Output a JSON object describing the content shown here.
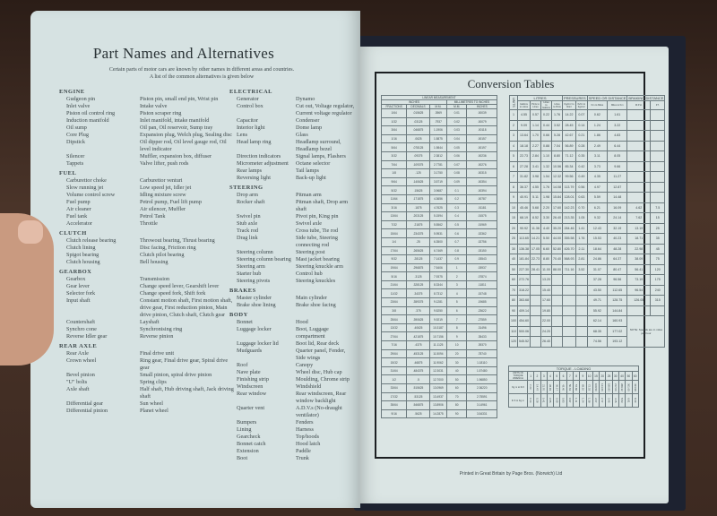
{
  "left_page": {
    "title": "Part Names and Alternatives",
    "intro": "Certain parts of motor cars are known by other names in different areas and countries. A list of the common alternatives is given below",
    "column1": [
      {
        "heading": "ENGINE",
        "items": [
          [
            "Gudgeon pin",
            "Piston pin, small end pin, Wrist pin"
          ],
          [
            "Inlet valve",
            "Intake valve"
          ],
          [
            "Piston oil control ring",
            "Piston scraper ring"
          ],
          [
            "Induction manifold",
            "Inlet manifold, intake manifold"
          ],
          [
            "Oil sump",
            "Oil pan, Oil reservoir, Sump tray"
          ],
          [
            "Core Plug",
            "Expansion plug, Welch plug, Sealing disc"
          ],
          [
            "Dipstick",
            "Oil dipper rod, Oil level gauge rod, Oil level indicator"
          ],
          [
            "Silencer",
            "Muffler, expansion box, diffuser"
          ],
          [
            "Tappets",
            "Valve lifter, push rods"
          ]
        ]
      },
      {
        "heading": "FUEL",
        "items": [
          [
            "Carburettor choke",
            "Carburettor venturi"
          ],
          [
            "Slow running jet",
            "Low speed jet, Idler jet"
          ],
          [
            "Volume control screw",
            "Idling mixture screw"
          ],
          [
            "Fuel pump",
            "Petrol pump, Fuel lift pump"
          ],
          [
            "Air cleaner",
            "Air silencer, Muffler"
          ],
          [
            "Fuel tank",
            "Petrol Tank"
          ],
          [
            "Accelerator",
            "Throttle"
          ]
        ]
      },
      {
        "heading": "CLUTCH",
        "items": [
          [
            "Clutch release bearing",
            "Throwout bearing, Thrust bearing"
          ],
          [
            "Clutch lining",
            "Disc facing, Friction ring"
          ],
          [
            "Spigot bearing",
            "Clutch pilot bearing"
          ],
          [
            "Clutch housing",
            "Bell housing"
          ]
        ]
      },
      {
        "heading": "GEARBOX",
        "items": [
          [
            "Gearbox",
            "Transmission"
          ],
          [
            "Gear lever",
            "Change speed lever, Gearshift lever"
          ],
          [
            "Selector fork",
            "Change speed fork, Shift fork"
          ],
          [
            "Input shaft",
            "Constant motion shaft, First motion shaft, drive gear, First reduction pinion, Main drive pinion, Clutch shaft, Clutch gear"
          ],
          [
            "Countershaft",
            "Layshaft"
          ],
          [
            "Synchro cone",
            "Synchronising ring"
          ],
          [
            "Reverse Idler gear",
            "Reverse pinion"
          ]
        ]
      },
      {
        "heading": "REAR AXLE",
        "items": [
          [
            "Rear Axle",
            "Final drive unit"
          ],
          [
            "Crown wheel",
            "Ring gear, Final drive gear, Spiral drive gear"
          ],
          [
            "Bevel pinion",
            "Small pinion, spiral drive pinion"
          ],
          [
            "\"U\" bolts",
            "Spring clips"
          ],
          [
            "Axle shaft",
            "Half shaft, Hub driving shaft, Jack driving shaft"
          ],
          [
            "Differential gear",
            "Sun wheel"
          ],
          [
            "Differential pinion",
            "Planet wheel"
          ]
        ]
      }
    ],
    "column2": [
      {
        "heading": "ELECTRICAL",
        "items": [
          [
            "Generator",
            "Dynamo"
          ],
          [
            "Control box",
            "Cut out, Voltage regulator, Current voltage regulator"
          ],
          [
            "Capacitor",
            "Condenser"
          ],
          [
            "Interior light",
            "Dome lamp"
          ],
          [
            "Lens",
            "Glass"
          ],
          [
            "Head lamp ring",
            "Headlamp surround, Headlamp bezel"
          ],
          [
            "Direction indicators",
            "Signal lamps, Flashers"
          ],
          [
            "Micrometer adjustment",
            "Octane selector"
          ],
          [
            "Rear lamps",
            "Tail lamps"
          ],
          [
            "Reversing light",
            "Back-up light"
          ]
        ]
      },
      {
        "heading": "STEERING",
        "items": [
          [
            "Drop arm",
            "Pitman arm"
          ],
          [
            "Rocker shaft",
            "Pitman shaft, Drop arm shaft"
          ],
          [
            "Swivel pin",
            "Pivot pin, King pin"
          ],
          [
            "Stub axle",
            "Swivel axle"
          ],
          [
            "Track rod",
            "Cross tube, Tie rod"
          ],
          [
            "Drag link",
            "Side tube, Steering connecting rod"
          ],
          [
            "Steering column",
            "Steering post"
          ],
          [
            "Steering column bearing",
            "Mast jacket bearing"
          ],
          [
            "Steering arm",
            "Steering knuckle arm"
          ],
          [
            "Starter hub",
            "Control hub"
          ],
          [
            "Steering pivots",
            "Steering knuckles"
          ]
        ]
      },
      {
        "heading": "BRAKES",
        "items": [
          [
            "Master cylinder",
            "Main cylinder"
          ],
          [
            "Brake shoe lining",
            "Brake shoe facing"
          ]
        ]
      },
      {
        "heading": "BODY",
        "items": [
          [
            "Bonnet",
            "Hood"
          ],
          [
            "Luggage locker",
            "Boot, Luggage compartment"
          ],
          [
            "Luggage locker lid",
            "Boot lid, Rear deck"
          ],
          [
            "Mudguards",
            "Quarter panel, Fender, Side wings"
          ],
          [
            "Roof",
            "Canopy"
          ],
          [
            "Nave plate",
            "Wheel disc, Hub cap"
          ],
          [
            "Finishing strip",
            "Moulding, Chrome strip"
          ],
          [
            "Windscreen",
            "Windshield"
          ],
          [
            "Rear window",
            "Rear windscreen, Rear window backlight"
          ],
          [
            "Quarter vent",
            "A.D.V.s (No-draught ventilator)"
          ],
          [
            "Bumpers",
            "Fenders"
          ],
          [
            "Lining",
            "Harness"
          ],
          [
            "Gearcheck",
            "Top/hoods"
          ],
          [
            "Bonnet catch",
            "Hood latch"
          ],
          [
            "Extension",
            "Paddle"
          ],
          [
            "Boot",
            "Trunk"
          ]
        ]
      }
    ]
  },
  "right_page": {
    "title": "Conversion Tables",
    "linear": {
      "heading": "LINEAR MEASUREMENT",
      "group_inches": "INCHES",
      "group_mm": "MILLIMETRES TO INCHES",
      "columns": [
        "FRACTIONS",
        "DECIMALS",
        "M.M.",
        "M.M.",
        "INCHES"
      ],
      "rows": [
        [
          "1/64",
          ".015625",
          ".3969",
          "0.01",
          ".00039"
        ],
        [
          "1/32",
          ".03125",
          ".7937",
          "0.02",
          ".00079"
        ],
        [
          "3/64",
          ".046875",
          "1.1906",
          "0.03",
          ".00118"
        ],
        [
          "1/16",
          ".0625",
          "1.5875",
          "0.04",
          ".00157"
        ],
        [
          "5/64",
          ".078125",
          "1.9844",
          "0.05",
          ".00197"
        ],
        [
          "3/32",
          ".09375",
          "2.3812",
          "0.06",
          ".00236"
        ],
        [
          "7/64",
          ".109375",
          "2.7781",
          "0.07",
          ".00276"
        ],
        [
          "1/8",
          ".125",
          "3.1750",
          "0.08",
          ".00315"
        ],
        [
          "9/64",
          ".140625",
          "3.5719",
          "0.09",
          ".00354"
        ],
        [
          "5/32",
          ".15625",
          "3.9687",
          "0.1",
          ".00394"
        ],
        [
          "11/64",
          ".171875",
          "4.3656",
          "0.2",
          ".00787"
        ],
        [
          "3/16",
          ".1875",
          "4.7625",
          "0.3",
          ".01181"
        ],
        [
          "13/64",
          ".203125",
          "5.1594",
          "0.4",
          ".01575"
        ],
        [
          "7/32",
          ".21875",
          "5.5562",
          "0.5",
          ".01969"
        ],
        [
          "15/64",
          ".234375",
          "5.9531",
          "0.6",
          ".02362"
        ],
        [
          "1/4",
          ".25",
          "6.3500",
          "0.7",
          ".02756"
        ],
        [
          "17/64",
          ".265625",
          "6.7469",
          "0.8",
          ".03150"
        ],
        [
          "9/32",
          ".28125",
          "7.1437",
          "0.9",
          ".03543"
        ],
        [
          "19/64",
          ".296875",
          "7.5406",
          "1",
          ".03937"
        ],
        [
          "5/16",
          ".3125",
          "7.9375",
          "2",
          ".07874"
        ],
        [
          "21/64",
          ".328125",
          "8.3344",
          "3",
          ".11811"
        ],
        [
          "11/32",
          ".34375",
          "8.7312",
          "4",
          ".15748"
        ],
        [
          "23/64",
          ".359375",
          "9.1281",
          "5",
          ".19685"
        ],
        [
          "3/8",
          ".375",
          "9.5250",
          "6",
          ".23622"
        ],
        [
          "25/64",
          ".390625",
          "9.9219",
          "7",
          ".27559"
        ],
        [
          "13/32",
          ".40625",
          "10.3187",
          "8",
          ".31496"
        ],
        [
          "27/64",
          ".421875",
          "10.7156",
          "9",
          ".35433"
        ],
        [
          "7/16",
          ".4375",
          "11.1125",
          "10",
          ".39370"
        ],
        [
          "29/64",
          ".453125",
          "11.5094",
          "20",
          ".78740"
        ],
        [
          "15/32",
          ".46875",
          "11.9062",
          "30",
          "1.18110"
        ],
        [
          "31/64",
          ".484375",
          "12.3031",
          "40",
          "1.57480"
        ],
        [
          "1/2",
          ".5",
          "12.7000",
          "50",
          "1.96850"
        ],
        [
          "33/64",
          ".515625",
          "13.0969",
          "60",
          "2.36220"
        ],
        [
          "17/32",
          ".53125",
          "13.4937",
          "70",
          "2.75591"
        ],
        [
          "35/64",
          ".546875",
          "13.8906",
          "80",
          "3.14961"
        ],
        [
          "9/16",
          ".5625",
          "14.2875",
          "90",
          "3.54331"
        ]
      ]
    },
    "conversions": {
      "units_label": "UNITS",
      "groups": [
        "LITRES",
        "PRESSURES",
        "SPEED OR DISTANCE",
        "BRAKING DISTANCE"
      ],
      "columns": [
        "Gallons to Litres",
        "Pints to Litres",
        "Litres to Gallons",
        "Litres to Pints",
        "Kg/cm² to lb/in²",
        "lb/in² to Kg/cm²",
        "Km to Miles",
        "Miles to Km",
        "M.P.H.",
        "FT."
      ],
      "rows": [
        [
          "1",
          "4.55",
          "0.57",
          "0.22",
          "1.76",
          "14.22",
          "0.07",
          "0.62",
          "1.61",
          "",
          ""
        ],
        [
          "2",
          "9.09",
          "1.14",
          "0.44",
          "3.52",
          "28.45",
          "0.14",
          "1.24",
          "3.22",
          "",
          ""
        ],
        [
          "3",
          "13.64",
          "1.70",
          "0.66",
          "5.28",
          "42.67",
          "0.21",
          "1.86",
          "4.83",
          "",
          ""
        ],
        [
          "4",
          "18.18",
          "2.27",
          "0.88",
          "7.04",
          "56.89",
          "0.28",
          "2.49",
          "6.44",
          "",
          ""
        ],
        [
          "5",
          "22.73",
          "2.84",
          "1.10",
          "8.80",
          "71.12",
          "0.35",
          "3.11",
          "8.05",
          "",
          ""
        ],
        [
          "6",
          "27.28",
          "3.41",
          "1.32",
          "10.56",
          "85.34",
          "0.42",
          "3.73",
          "9.66",
          "",
          ""
        ],
        [
          "7",
          "31.82",
          "3.98",
          "1.54",
          "12.32",
          "99.56",
          "0.49",
          "4.35",
          "11.27",
          "",
          ""
        ],
        [
          "8",
          "36.37",
          "4.55",
          "1.76",
          "14.08",
          "113.79",
          "0.56",
          "4.97",
          "12.87",
          "",
          ""
        ],
        [
          "9",
          "40.91",
          "5.11",
          "1.98",
          "15.84",
          "128.01",
          "0.63",
          "5.59",
          "14.48",
          "",
          ""
        ],
        [
          "10",
          "45.46",
          "5.68",
          "2.20",
          "17.60",
          "142.23",
          "0.70",
          "6.21",
          "16.09",
          "4.62",
          "7.5"
        ],
        [
          "15",
          "68.19",
          "8.52",
          "3.30",
          "26.40",
          "213.35",
          "1.05",
          "9.32",
          "24.14",
          "7.62",
          "15"
        ],
        [
          "20",
          "90.92",
          "11.36",
          "4.40",
          "35.20",
          "284.46",
          "1.41",
          "12.43",
          "32.19",
          "13.19",
          "25"
        ],
        [
          "25",
          "113.65",
          "14.21",
          "5.50",
          "44.00",
          "355.58",
          "1.76",
          "15.53",
          "40.23",
          "18.71",
          "35"
        ],
        [
          "30",
          "136.38",
          "17.05",
          "6.60",
          "52.80",
          "426.70",
          "2.11",
          "18.64",
          "48.28",
          "22.98",
          "45"
        ],
        [
          "40",
          "181.84",
          "22.73",
          "8.80",
          "70.40",
          "568.93",
          "2.81",
          "24.86",
          "64.37",
          "38.09",
          "75"
        ],
        [
          "50",
          "227.30",
          "28.41",
          "11.00",
          "88.00",
          "711.16",
          "3.52",
          "31.07",
          "80.47",
          "56.41",
          "120"
        ],
        [
          "60",
          "272.76",
          "",
          "13.20",
          "",
          "",
          "",
          "37.28",
          "96.56",
          "73.19",
          "175"
        ],
        [
          "70",
          "318.22",
          "",
          "15.40",
          "",
          "",
          "",
          "43.50",
          "112.65",
          "96.54",
          "240"
        ],
        [
          "80",
          "363.68",
          "",
          "17.60",
          "",
          "",
          "",
          "49.71",
          "128.75",
          "126.05",
          "315"
        ],
        [
          "90",
          "409.14",
          "",
          "19.80",
          "",
          "",
          "",
          "55.92",
          "144.84",
          "",
          ""
        ],
        [
          "100",
          "454.60",
          "",
          "22.00",
          "",
          "",
          "",
          "62.14",
          "160.93",
          "",
          ""
        ],
        [
          "110",
          "500.06",
          "",
          "24.20",
          "",
          "",
          "",
          "68.35",
          "177.02",
          "",
          ""
        ],
        [
          "120",
          "545.52",
          "",
          "26.40",
          "",
          "",
          "",
          "74.56",
          "193.12",
          "",
          ""
        ]
      ],
      "note": "NOTE: Speeds are in miles per hour"
    },
    "torque": {
      "heading": "TORQUE - LOADING",
      "units_label": "UNITS OF TORQUE WRENCH",
      "units": [
        "1",
        "2",
        "3",
        "4",
        "5",
        "6",
        "7",
        "8",
        "9",
        "10",
        "15",
        "20",
        "25",
        "30",
        "40",
        "50",
        "60"
      ],
      "rows": [
        {
          "label": "Kg m to lb ft",
          "values": [
            "7.23",
            "14.47",
            "21.70",
            "28.93",
            "36.17",
            "43.40",
            "50.63",
            "57.86",
            "65.10",
            "72.33",
            "108.50",
            "144.66",
            "180.83",
            "217.00",
            "289.32",
            "361.65",
            "433.98"
          ]
        },
        {
          "label": "lb ft to Kg m",
          "values": [
            "0.14",
            "0.28",
            "0.41",
            "0.55",
            "0.69",
            "0.83",
            "0.97",
            "1.11",
            "1.24",
            "1.38",
            "2.07",
            "2.77",
            "3.46",
            "4.15",
            "5.53",
            "6.91",
            "8.30"
          ]
        }
      ]
    },
    "footer": "Printed in Great Britain by Page Bros. (Norwich) Ltd"
  }
}
